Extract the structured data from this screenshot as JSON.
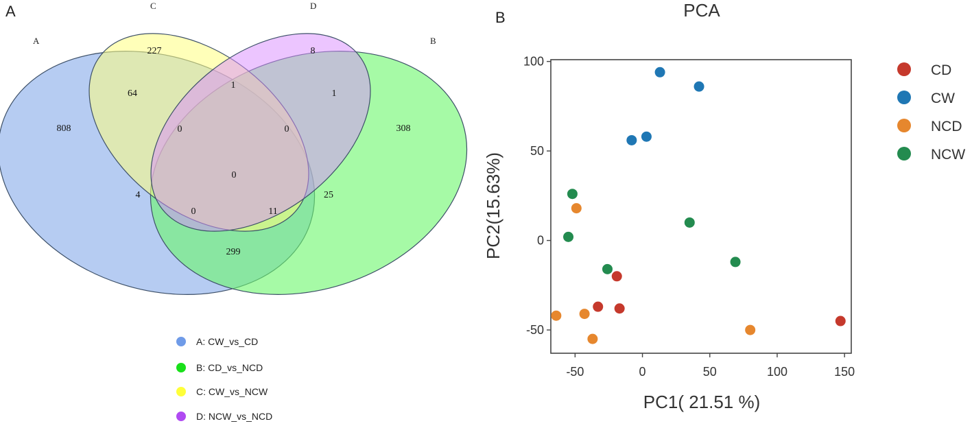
{
  "chart_data": [
    {
      "type": "venn",
      "panel_label": "A",
      "set_labels": [
        "A",
        "B",
        "C",
        "D"
      ],
      "regions": [
        {
          "sets": "A",
          "value": "808"
        },
        {
          "sets": "B",
          "value": "308"
        },
        {
          "sets": "C",
          "value": "227"
        },
        {
          "sets": "D",
          "value": "8"
        },
        {
          "sets": "AC",
          "value": "64"
        },
        {
          "sets": "CD",
          "value": "1"
        },
        {
          "sets": "BD",
          "value": "1"
        },
        {
          "sets": "ACD",
          "value": "0"
        },
        {
          "sets": "BCD",
          "value": "0"
        },
        {
          "sets": "ABCD",
          "value": "0"
        },
        {
          "sets": "AD",
          "value": "4"
        },
        {
          "sets": "BC",
          "value": "25"
        },
        {
          "sets": "ABD",
          "value": "0"
        },
        {
          "sets": "ABC",
          "value": "11"
        },
        {
          "sets": "AB",
          "value": "299"
        }
      ],
      "legend": [
        {
          "label": "A: CW_vs_CD",
          "color": "#6f9be8"
        },
        {
          "label": "B: CD_vs_NCD",
          "color": "#19e01a"
        },
        {
          "label": "C: CW_vs_NCW",
          "color": "#ffff3a"
        },
        {
          "label": "D: NCW_vs_NCD",
          "color": "#b04af2"
        }
      ],
      "colors": {
        "A": "#a9c3f0",
        "B": "#6af76b",
        "C": "#ffff80",
        "D": "#d98cff"
      }
    },
    {
      "type": "scatter",
      "panel_label": "B",
      "title": "PCA",
      "xlabel": "PC1( 21.51 %)",
      "ylabel": "PC2(15.63%)",
      "xlim": [
        -68,
        155
      ],
      "ylim": [
        -63,
        101
      ],
      "xticks": [
        -50,
        0,
        50,
        100,
        150
      ],
      "yticks": [
        -50,
        0,
        50,
        100
      ],
      "series": [
        {
          "name": "CD",
          "color": "#c5392c",
          "points": [
            [
              -19,
              -20
            ],
            [
              -17,
              -38
            ],
            [
              -33,
              -37
            ],
            [
              147,
              -45
            ]
          ]
        },
        {
          "name": "CW",
          "color": "#1f77b4",
          "points": [
            [
              13,
              94
            ],
            [
              42,
              86
            ],
            [
              -8,
              56
            ],
            [
              3,
              58
            ]
          ]
        },
        {
          "name": "NCD",
          "color": "#e6872e",
          "points": [
            [
              -49,
              18
            ],
            [
              -64,
              -42
            ],
            [
              -43,
              -41
            ],
            [
              -37,
              -55
            ],
            [
              80,
              -50
            ]
          ]
        },
        {
          "name": "NCW",
          "color": "#238b4f",
          "points": [
            [
              -52,
              26
            ],
            [
              -55,
              2
            ],
            [
              -26,
              -16
            ],
            [
              35,
              10
            ],
            [
              69,
              -12
            ]
          ]
        }
      ]
    }
  ]
}
